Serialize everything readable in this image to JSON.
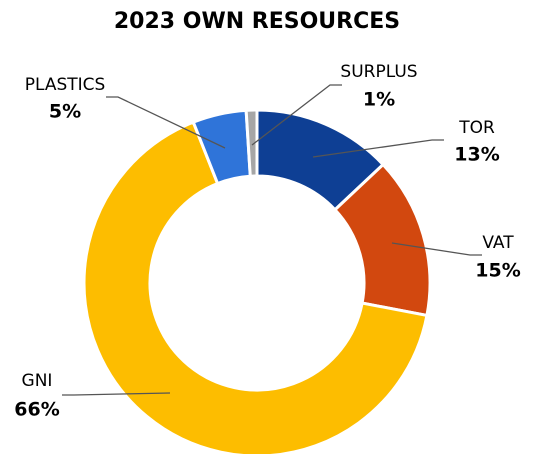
{
  "chart_data": {
    "type": "donut",
    "title": "2023 OWN RESOURCES",
    "categories": [
      "TOR",
      "VAT",
      "GNI",
      "PLASTICS",
      "SURPLUS"
    ],
    "values": [
      13,
      15,
      66,
      5,
      1
    ],
    "value_labels": [
      "13%",
      "15%",
      "66%",
      "5%",
      "1%"
    ],
    "colors": [
      "#0e3f94",
      "#d2480f",
      "#fdbd00",
      "#2f74d9",
      "#a6a6a6"
    ]
  }
}
